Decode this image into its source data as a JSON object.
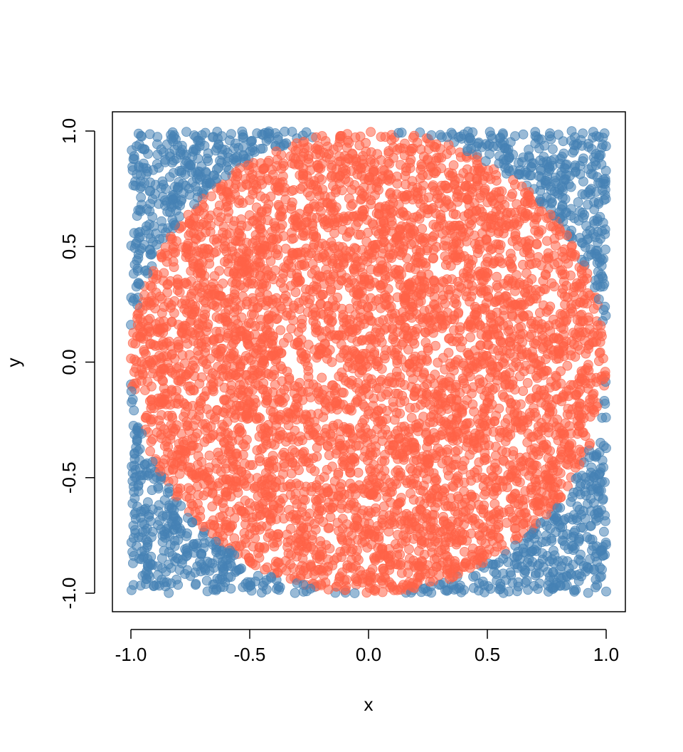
{
  "chart_data": {
    "type": "scatter",
    "title": "",
    "xlabel": "x",
    "ylabel": "y",
    "xlim": [
      -1.0,
      1.0
    ],
    "ylim": [
      -1.0,
      1.0
    ],
    "x_ticks": [
      -1.0,
      -0.5,
      0.0,
      0.5,
      1.0
    ],
    "y_ticks": [
      -1.0,
      -0.5,
      0.0,
      0.5,
      1.0
    ],
    "x_tick_labels": [
      "-1.0",
      "-0.5",
      "0.0",
      "0.5",
      "1.0"
    ],
    "y_tick_labels": [
      "-1.0",
      "-0.5",
      "0.0",
      "0.5",
      "1.0"
    ],
    "grid": false,
    "legend": "none",
    "sampling": "uniform random points in the square [-1, 1] x [-1, 1]",
    "series": [
      {
        "region": "inside unit circle (x^2 + y^2 <= 1)",
        "color": "#FF6347"
      },
      {
        "region": "outside unit circle (x^2 + y^2 > 1)",
        "color": "#4682B4"
      }
    ]
  }
}
